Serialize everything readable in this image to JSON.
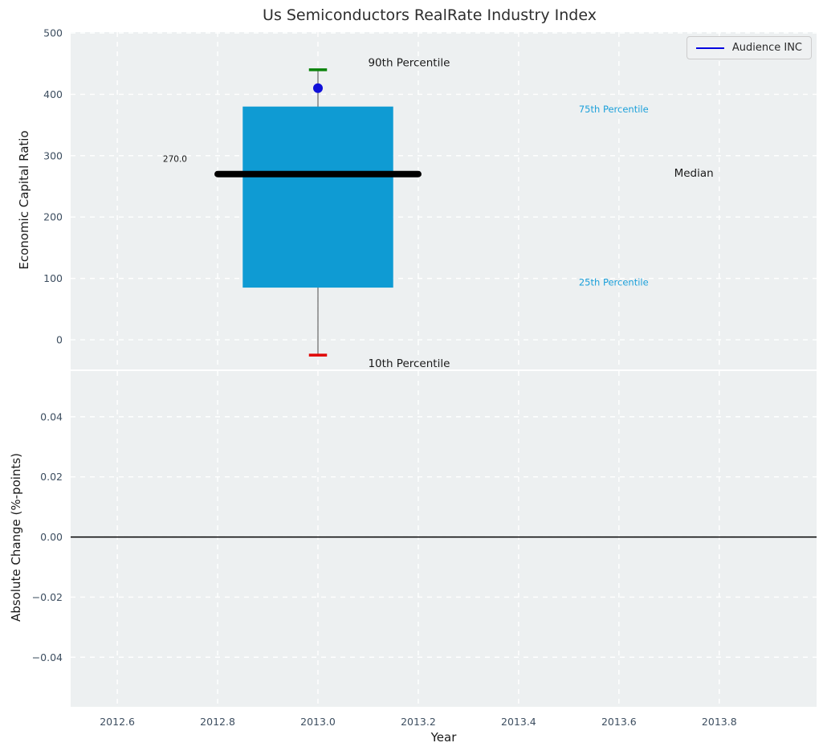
{
  "chart_data": {
    "type": "boxplot",
    "title": "Us Semiconductors RealRate Industry Index",
    "legend": {
      "label": "Audience INC",
      "line_color": "#0505e0",
      "position": "upper right"
    },
    "x": {
      "label": "Year",
      "lim": [
        2012.507,
        2013.994
      ],
      "ticks": [
        2012.6,
        2012.8,
        2013.0,
        2013.2,
        2013.4,
        2013.6,
        2013.8
      ]
    },
    "style": {
      "plot_bg": "#edf0f1",
      "grid_color": "#ffffff",
      "grid_dashed": true,
      "tick_label_color": "#3d4e60",
      "fig_bg": "#ffffff"
    },
    "subplots": [
      {
        "name": "economic-capital-ratio",
        "ylabel": "Economic Capital Ratio",
        "ylim": [
          -48.4,
          501.3
        ],
        "yticks": [
          0,
          100,
          200,
          300,
          400,
          500
        ],
        "box": {
          "company": "Audience INC",
          "x_center": 2013.0,
          "p10": -25,
          "p25": 85,
          "median": 270,
          "p75": 380,
          "p90": 440,
          "company_value": 410,
          "median_label": "270.0",
          "box_x": [
            2012.85,
            2013.15
          ],
          "median_x": [
            2012.8,
            2013.2
          ],
          "cap_x": [
            2012.982,
            2013.018
          ],
          "colors": {
            "box_fill": "#0f9bd3",
            "median_line": "#000000",
            "whisker": "#666666",
            "p90_cap": "#0a820a",
            "p10_cap": "#e00505",
            "company_dot": "#1010d9"
          }
        },
        "annotations": [
          {
            "text": "90th Percentile",
            "x": 2013.1,
            "y": 452,
            "color": "#1a1a1a",
            "size": 13.5,
            "anchor": "start"
          },
          {
            "text": "75th Percentile",
            "x": 2013.52,
            "y": 376,
            "color": "#1ca0da",
            "size": 11.5,
            "anchor": "start"
          },
          {
            "text": "Median",
            "x": 2013.71,
            "y": 272,
            "color": "#1a1a1a",
            "size": 13.5,
            "anchor": "start"
          },
          {
            "text": "25th Percentile",
            "x": 2013.52,
            "y": 94,
            "color": "#1ca0da",
            "size": 11.5,
            "anchor": "start"
          },
          {
            "text": "10th Percentile",
            "x": 2013.1,
            "y": -38,
            "color": "#1a1a1a",
            "size": 13.5,
            "anchor": "start"
          },
          {
            "text": "270.0",
            "x": 2012.715,
            "y": 295,
            "color": "#1a1a1a",
            "size": 10.5,
            "anchor": "middle"
          }
        ]
      },
      {
        "name": "absolute-change",
        "ylabel": "Absolute Change (%-points)",
        "ylim": [
          -0.0565,
          0.0552
        ],
        "yticks": [
          0.04,
          0.02,
          0.0,
          -0.02,
          -0.04
        ],
        "zero_line": 0.0,
        "zero_line_color": "#000000"
      }
    ]
  }
}
